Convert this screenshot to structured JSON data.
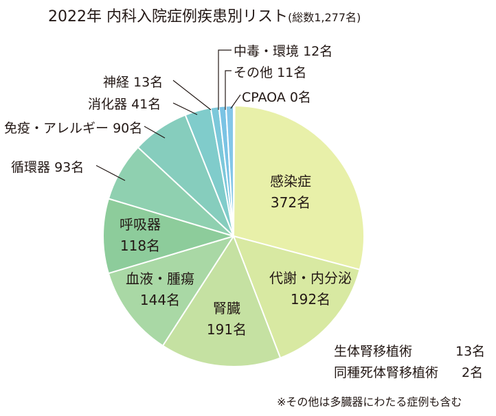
{
  "chart_data": {
    "type": "pie",
    "title": "2022年 内科入院症例疾患別リスト",
    "subtitle": "(総数1,277名)",
    "slices": [
      {
        "key": "kansensho",
        "label": "感染症",
        "value": 372,
        "value_text": "372名",
        "color": "#e8f0a9"
      },
      {
        "key": "taisha",
        "label": "代謝・内分泌",
        "value": 192,
        "value_text": "192名",
        "color": "#d8e9a2"
      },
      {
        "key": "jinzo",
        "label": "腎臓",
        "value": 191,
        "value_text": "191名",
        "color": "#c5e1a2"
      },
      {
        "key": "ketsueki",
        "label": "血液・腫瘍",
        "value": 144,
        "value_text": "144名",
        "color": "#a9d8a5"
      },
      {
        "key": "kokyuki",
        "label": "呼吸器",
        "value": 118,
        "value_text": "118名",
        "color": "#8dcc9b"
      },
      {
        "key": "junkanki",
        "label": "循環器",
        "value": 93,
        "value_text": "93名",
        "color": "#8fd0b0"
      },
      {
        "key": "meneki",
        "label": "免疫・アレルギー",
        "value": 90,
        "value_text": "90名",
        "color": "#86cdbd"
      },
      {
        "key": "shoka",
        "label": "消化器",
        "value": 41,
        "value_text": "41名",
        "color": "#80cccb"
      },
      {
        "key": "shinkei",
        "label": "神経",
        "value": 13,
        "value_text": "13名",
        "color": "#7cc8da"
      },
      {
        "key": "sonota",
        "label": "その他",
        "value": 11,
        "value_text": "11名",
        "color": "#7ac3e4"
      },
      {
        "key": "chudoku",
        "label": "中毒・環境",
        "value": 12,
        "value_text": "12名",
        "color": "#83c6e8"
      },
      {
        "key": "cpaoa",
        "label": "CPAOA",
        "value": 0,
        "value_text": "0名",
        "color": "#9ad0ea"
      }
    ],
    "extra_rows": [
      {
        "label": "生体腎移植術",
        "value": 13,
        "value_text": "13名"
      },
      {
        "label": "同種死体腎移植術",
        "value": 2,
        "value_text": "2名"
      }
    ],
    "note": "※その他は多臓器にわたる症例も含む"
  }
}
